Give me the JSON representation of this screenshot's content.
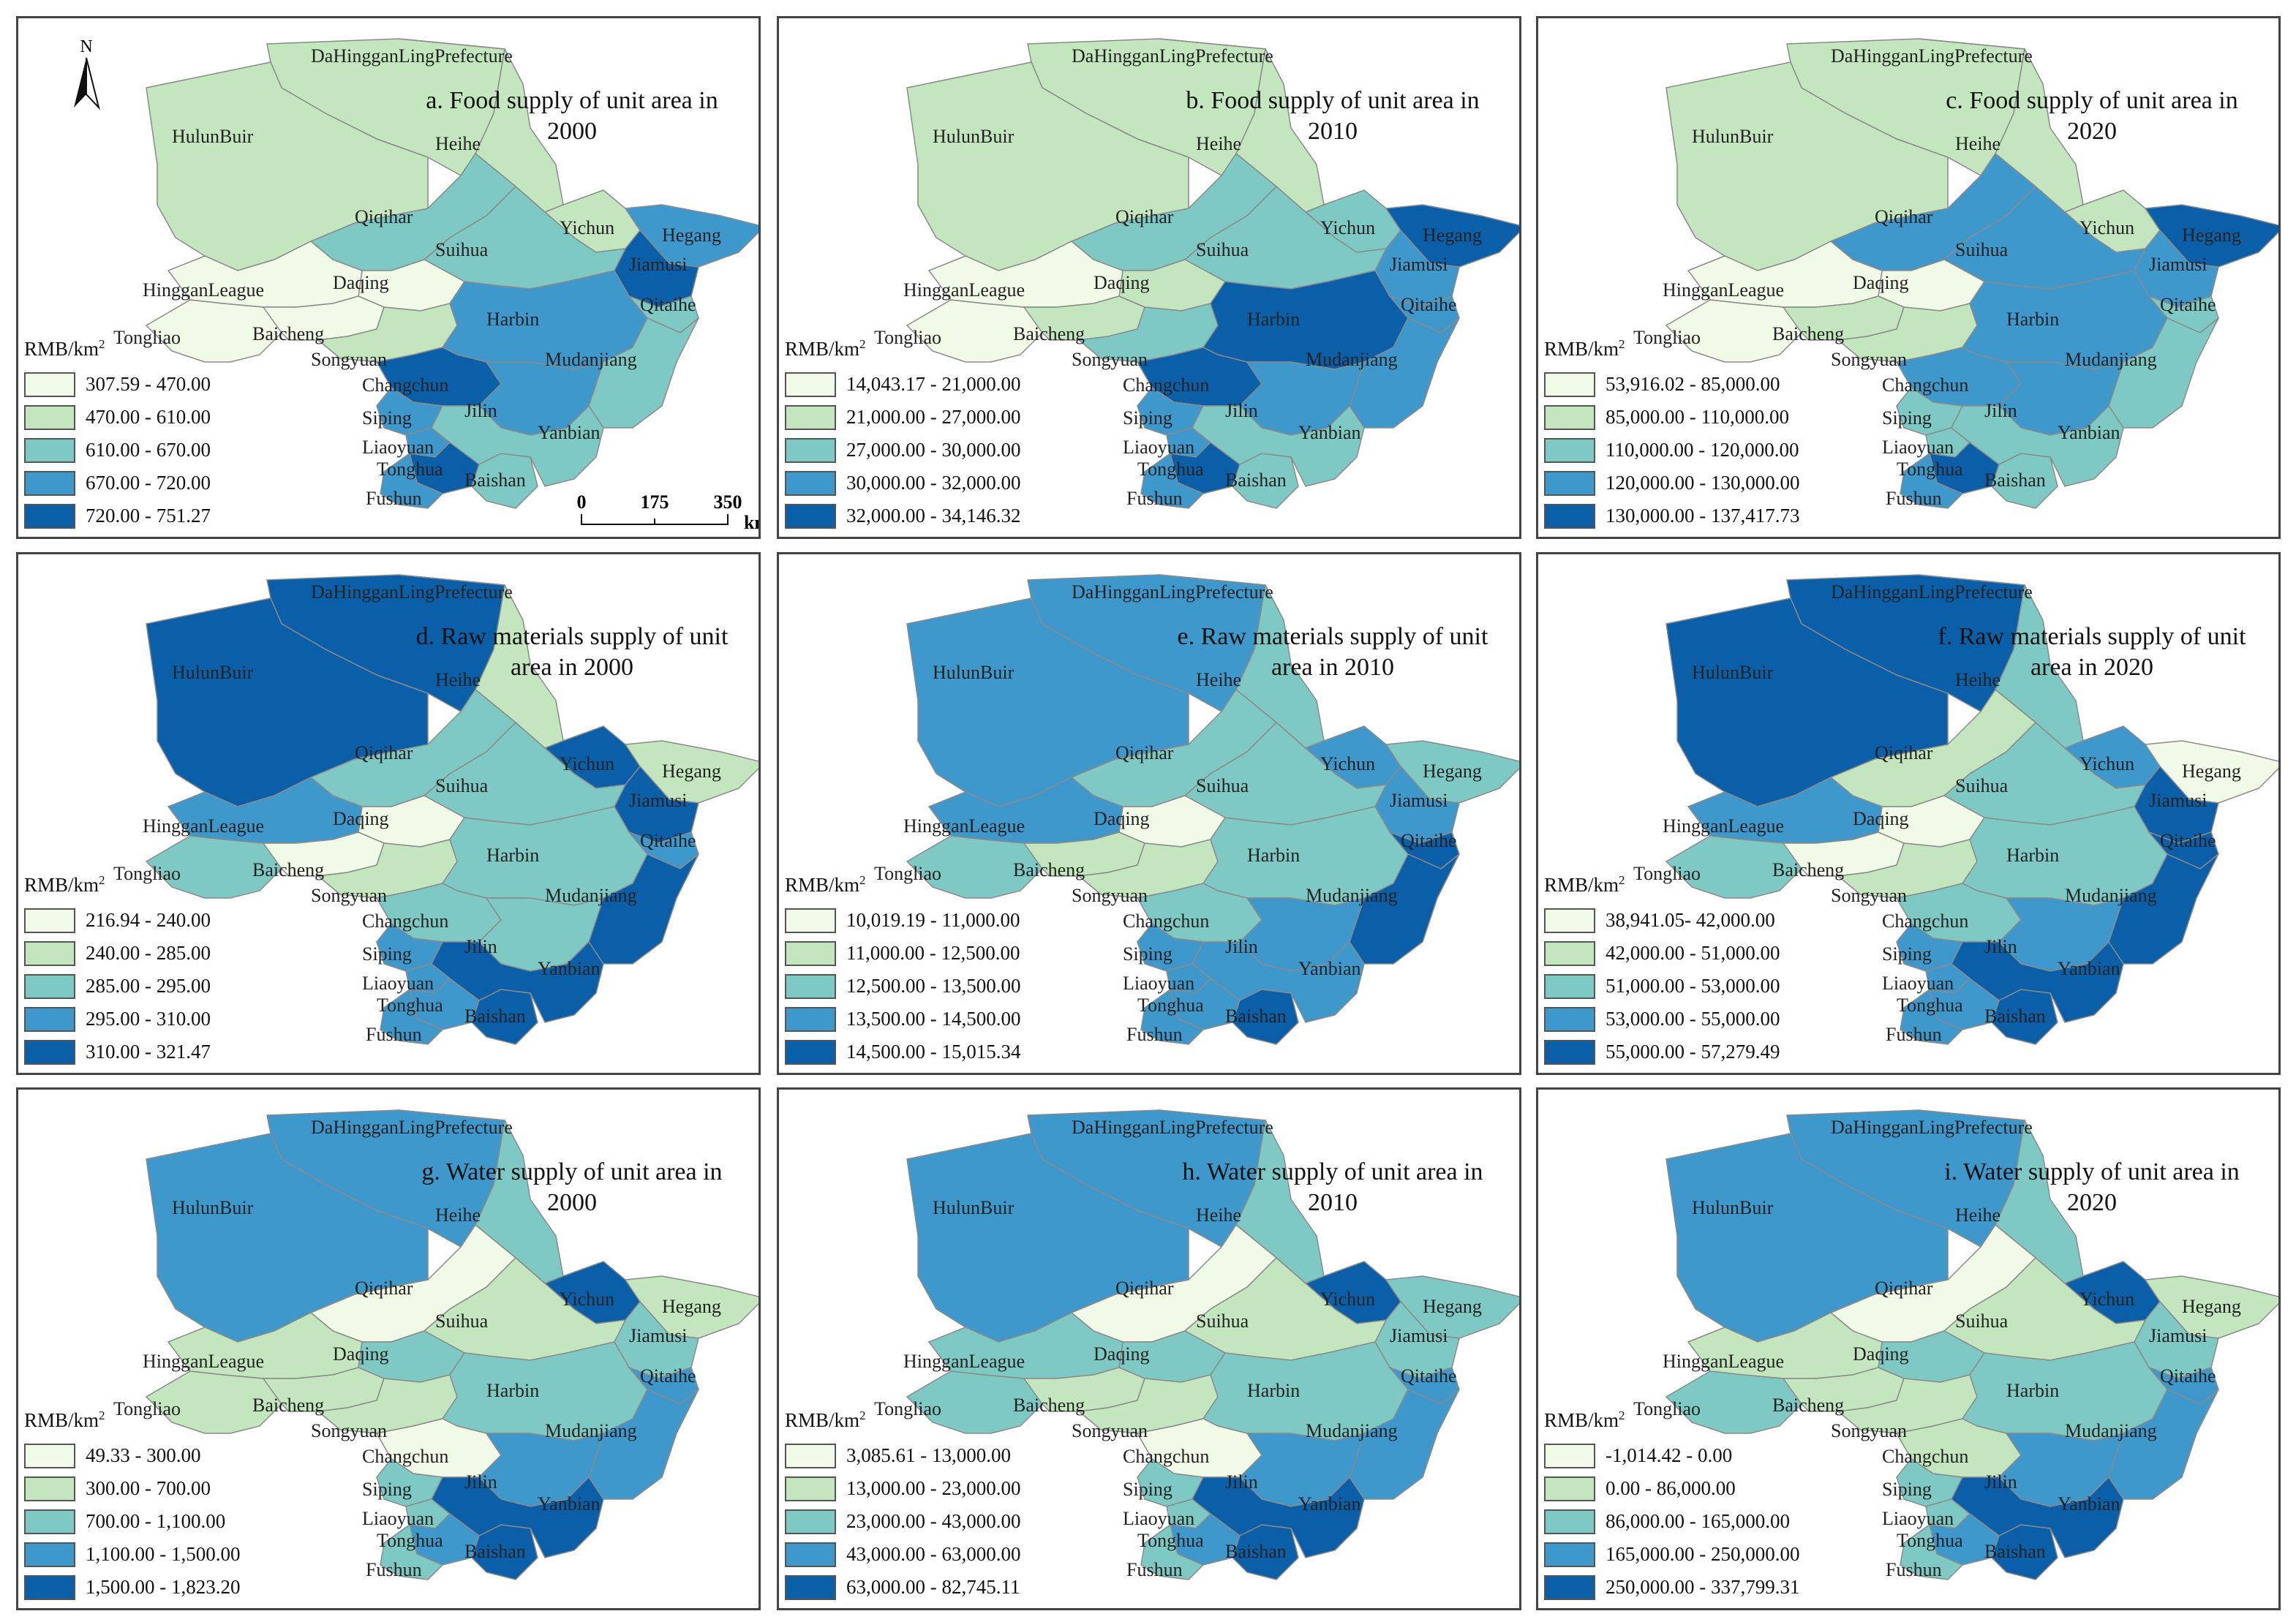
{
  "colors": [
    "#f1f9e7",
    "#c4e6bf",
    "#7fc9c5",
    "#3f98cc",
    "#0a5fa8"
  ],
  "unit_label": "RMB/km",
  "unit_exp": "2",
  "north_label": "N",
  "scale_labels": [
    "0",
    "175",
    "350",
    "km"
  ],
  "regions": [
    {
      "id": "dhl",
      "name": "DaHingganLingPrefecture"
    },
    {
      "id": "hulun",
      "name": "HulunBuir"
    },
    {
      "id": "heihe",
      "name": "Heihe"
    },
    {
      "id": "qiqihar",
      "name": "Qiqihar"
    },
    {
      "id": "yichun",
      "name": "Yichun"
    },
    {
      "id": "hegang",
      "name": "Hegang"
    },
    {
      "id": "jiamusi",
      "name": "Jiamusi"
    },
    {
      "id": "suihua",
      "name": "Suihua"
    },
    {
      "id": "daqing",
      "name": "Daqing"
    },
    {
      "id": "hinggan",
      "name": "HingganLeague"
    },
    {
      "id": "tongliao",
      "name": "Tongliao"
    },
    {
      "id": "baicheng",
      "name": "Baicheng"
    },
    {
      "id": "songyuan",
      "name": "Songyuan"
    },
    {
      "id": "harbin",
      "name": "Harbin"
    },
    {
      "id": "qitaihe",
      "name": "Qitaihe"
    },
    {
      "id": "mudanjiang",
      "name": "Mudanjiang"
    },
    {
      "id": "changchun",
      "name": "Changchun"
    },
    {
      "id": "jilin",
      "name": "Jilin"
    },
    {
      "id": "siping",
      "name": "Siping"
    },
    {
      "id": "liaoyuan",
      "name": "Liaoyuan"
    },
    {
      "id": "tonghua",
      "name": "Tonghua"
    },
    {
      "id": "baishan",
      "name": "Baishan"
    },
    {
      "id": "yanbian",
      "name": "Yanbian"
    },
    {
      "id": "fushun",
      "name": "Fushun"
    }
  ],
  "panels": [
    {
      "title": "a. Food supply of unit area in 2000",
      "legend": [
        "307.59 - 470.00",
        "470.00 - 610.00",
        "610.00 - 670.00",
        "670.00 - 720.00",
        "720.00 - 751.27"
      ],
      "classes": {
        "dhl": 1,
        "hulun": 1,
        "heihe": 1,
        "qiqihar": 2,
        "yichun": 1,
        "hegang": 3,
        "jiamusi": 4,
        "suihua": 2,
        "daqing": 0,
        "hinggan": 0,
        "tongliao": 0,
        "baicheng": 0,
        "songyuan": 1,
        "harbin": 3,
        "qitaihe": 2,
        "mudanjiang": 2,
        "changchun": 4,
        "jilin": 3,
        "siping": 3,
        "liaoyuan": 3,
        "tonghua": 4,
        "baishan": 2,
        "yanbian": 2,
        "fushun": 3
      }
    },
    {
      "title": "b. Food supply of unit area in 2010",
      "legend": [
        "14,043.17 - 21,000.00",
        "21,000.00 - 27,000.00",
        "27,000.00 - 30,000.00",
        "30,000.00 - 32,000.00",
        "32,000.00 - 34,146.32"
      ],
      "classes": {
        "dhl": 1,
        "hulun": 1,
        "heihe": 1,
        "qiqihar": 2,
        "yichun": 2,
        "hegang": 4,
        "jiamusi": 3,
        "suihua": 2,
        "daqing": 1,
        "hinggan": 0,
        "tongliao": 0,
        "baicheng": 1,
        "songyuan": 2,
        "harbin": 4,
        "qitaihe": 3,
        "mudanjiang": 3,
        "changchun": 4,
        "jilin": 3,
        "siping": 3,
        "liaoyuan": 3,
        "tonghua": 4,
        "baishan": 2,
        "yanbian": 2,
        "fushun": 3
      }
    },
    {
      "title": "c. Food supply of unit area in 2020",
      "legend": [
        "53,916.02 - 85,000.00",
        "85,000.00 - 110,000.00",
        "110,000.00 - 120,000.00",
        "120,000.00 - 130,000.00",
        "130,000.00 - 137,417.73"
      ],
      "classes": {
        "dhl": 1,
        "hulun": 1,
        "heihe": 1,
        "qiqihar": 3,
        "yichun": 1,
        "hegang": 4,
        "jiamusi": 3,
        "suihua": 3,
        "daqing": 0,
        "hinggan": 0,
        "tongliao": 0,
        "baicheng": 1,
        "songyuan": 1,
        "harbin": 3,
        "qitaihe": 2,
        "mudanjiang": 2,
        "changchun": 3,
        "jilin": 3,
        "siping": 2,
        "liaoyuan": 2,
        "tonghua": 4,
        "baishan": 2,
        "yanbian": 2,
        "fushun": 3
      }
    },
    {
      "title": "d. Raw materials supply of unit area in 2000",
      "legend": [
        "216.94 - 240.00",
        "240.00 - 285.00",
        "285.00 - 295.00",
        "295.00 - 310.00",
        "310.00 - 321.47"
      ],
      "classes": {
        "dhl": 4,
        "hulun": 4,
        "heihe": 1,
        "qiqihar": 2,
        "yichun": 4,
        "hegang": 1,
        "jiamusi": 4,
        "suihua": 2,
        "daqing": 0,
        "hinggan": 3,
        "tongliao": 2,
        "baicheng": 0,
        "songyuan": 1,
        "harbin": 2,
        "qitaihe": 3,
        "mudanjiang": 4,
        "changchun": 2,
        "jilin": 2,
        "siping": 3,
        "liaoyuan": 3,
        "tonghua": 3,
        "baishan": 4,
        "yanbian": 4,
        "fushun": 3
      }
    },
    {
      "title": "e. Raw materials supply of unit area in 2010",
      "legend": [
        "10,019.19 - 11,000.00",
        "11,000.00 - 12,500.00",
        "12,500.00 - 13,500.00",
        "13,500.00 - 14,500.00",
        "14,500.00 - 15,015.34"
      ],
      "classes": {
        "dhl": 3,
        "hulun": 3,
        "heihe": 2,
        "qiqihar": 2,
        "yichun": 3,
        "hegang": 2,
        "jiamusi": 3,
        "suihua": 2,
        "daqing": 0,
        "hinggan": 3,
        "tongliao": 2,
        "baicheng": 1,
        "songyuan": 1,
        "harbin": 2,
        "qitaihe": 4,
        "mudanjiang": 4,
        "changchun": 2,
        "jilin": 3,
        "siping": 3,
        "liaoyuan": 3,
        "tonghua": 3,
        "baishan": 4,
        "yanbian": 3,
        "fushun": 3
      }
    },
    {
      "title": "f. Raw materials supply of unit area in 2020",
      "legend": [
        "38,941.05- 42,000.00",
        "42,000.00 - 51,000.00",
        "51,000.00 - 53,000.00",
        "53,000.00 - 55,000.00",
        "55,000.00 - 57,279.49"
      ],
      "classes": {
        "dhl": 4,
        "hulun": 4,
        "heihe": 2,
        "qiqihar": 1,
        "yichun": 3,
        "hegang": 0,
        "jiamusi": 4,
        "suihua": 2,
        "daqing": 0,
        "hinggan": 3,
        "tongliao": 2,
        "baicheng": 0,
        "songyuan": 1,
        "harbin": 2,
        "qitaihe": 4,
        "mudanjiang": 4,
        "changchun": 2,
        "jilin": 3,
        "siping": 3,
        "liaoyuan": 3,
        "tonghua": 3,
        "baishan": 4,
        "yanbian": 4,
        "fushun": 3
      }
    },
    {
      "title": "g. Water supply of unit area in 2000",
      "legend": [
        "49.33 - 300.00",
        "300.00 - 700.00",
        "700.00 - 1,100.00",
        "1,100.00 - 1,500.00",
        "1,500.00 - 1,823.20"
      ],
      "classes": {
        "dhl": 3,
        "hulun": 3,
        "heihe": 2,
        "qiqihar": 0,
        "yichun": 4,
        "hegang": 1,
        "jiamusi": 2,
        "suihua": 1,
        "daqing": 2,
        "hinggan": 1,
        "tongliao": 1,
        "baicheng": 1,
        "songyuan": 1,
        "harbin": 2,
        "qitaihe": 3,
        "mudanjiang": 3,
        "changchun": 0,
        "jilin": 3,
        "siping": 2,
        "liaoyuan": 2,
        "tonghua": 3,
        "baishan": 4,
        "yanbian": 4,
        "fushun": 2
      }
    },
    {
      "title": "h. Water supply of unit area in 2010",
      "legend": [
        "3,085.61 - 13,000.00",
        "13,000.00 - 23,000.00",
        "23,000.00 - 43,000.00",
        "43,000.00 - 63,000.00",
        "63,000.00 - 82,745.11"
      ],
      "classes": {
        "dhl": 3,
        "hulun": 3,
        "heihe": 2,
        "qiqihar": 0,
        "yichun": 4,
        "hegang": 2,
        "jiamusi": 2,
        "suihua": 1,
        "daqing": 2,
        "hinggan": 2,
        "tongliao": 2,
        "baicheng": 1,
        "songyuan": 1,
        "harbin": 2,
        "qitaihe": 3,
        "mudanjiang": 3,
        "changchun": 0,
        "jilin": 3,
        "siping": 2,
        "liaoyuan": 2,
        "tonghua": 3,
        "baishan": 4,
        "yanbian": 4,
        "fushun": 2
      }
    },
    {
      "title": "i. Water supply of unit area in 2020",
      "legend": [
        "-1,014.42 - 0.00",
        "0.00 - 86,000.00",
        "86,000.00 - 165,000.00",
        "165,000.00 - 250,000.00",
        "250,000.00 - 337,799.31"
      ],
      "classes": {
        "dhl": 3,
        "hulun": 3,
        "heihe": 2,
        "qiqihar": 0,
        "yichun": 4,
        "hegang": 1,
        "jiamusi": 2,
        "suihua": 1,
        "daqing": 2,
        "hinggan": 1,
        "tongliao": 2,
        "baicheng": 1,
        "songyuan": 1,
        "harbin": 2,
        "qitaihe": 3,
        "mudanjiang": 3,
        "changchun": 1,
        "jilin": 3,
        "siping": 2,
        "liaoyuan": 2,
        "tonghua": 3,
        "baishan": 4,
        "yanbian": 4,
        "fushun": 2
      }
    }
  ]
}
